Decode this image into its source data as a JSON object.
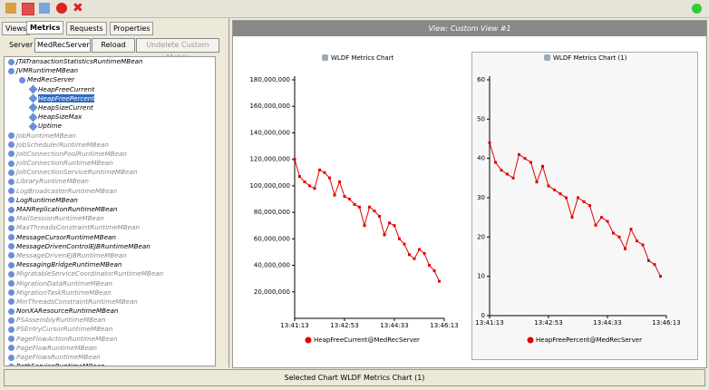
{
  "tabs": [
    "Views",
    "Metrics",
    "Requests",
    "Properties"
  ],
  "server_label": "Server",
  "server_select": "MedRecServer",
  "reload_button": "Reload",
  "undelete_button": "Undelete Custom Metric",
  "tree": [
    {
      "label": "JTATransactionStatisticsRuntimeMBean"
    },
    {
      "label": "JVMRuntimeMBean",
      "children": [
        {
          "label": "MedRecServer",
          "children": [
            {
              "label": "HeapFreeCurrent"
            },
            {
              "label": "HeapFreePercent"
            },
            {
              "label": "HeapSizeCurrent"
            },
            {
              "label": "HeapSizeMax"
            },
            {
              "label": "Uptime"
            }
          ]
        }
      ]
    },
    {
      "label": "JobRuntimeMBean"
    },
    {
      "label": "JobSchedulerRuntimeMBean"
    },
    {
      "label": "JoltConnectionPoolRuntimeMBean"
    },
    {
      "label": "JoltConnectionRuntimeMBean"
    },
    {
      "label": "JoltConnectionServiceRuntimeMBean"
    },
    {
      "label": "LibraryRuntimeMBean"
    },
    {
      "label": "LogBroadcasterRuntimeMBean"
    },
    {
      "label": "LogRuntimeMBean"
    },
    {
      "label": "MANReplicationRuntimeMBean"
    },
    {
      "label": "MailSessionRuntimeMBean"
    },
    {
      "label": "MaxThreadsConstraintRuntimeMBean"
    },
    {
      "label": "MessageCursorRuntimeMBean"
    },
    {
      "label": "MessageDrivenControlEJBRuntimeMBean"
    },
    {
      "label": "MessageDrivenEJBRuntimeMBean"
    },
    {
      "label": "MessagingBridgeRuntimeMBean"
    },
    {
      "label": "MigratableServiceCoordinatorRuntimeMBean"
    },
    {
      "label": "MigrationDataRuntimeMBean"
    },
    {
      "label": "MigrationTaskRuntimeMBean"
    },
    {
      "label": "MinThreadsConstraintRuntimeMBean"
    },
    {
      "label": "NonXAResourceRuntimeMBean"
    },
    {
      "label": "PSAssemblyRuntimeMBean"
    },
    {
      "label": "PSEntryCursorRuntimeMBean"
    },
    {
      "label": "PageFlowActionRuntimeMBean"
    },
    {
      "label": "PageFlowRuntimeMBean"
    },
    {
      "label": "PageFlowsRuntimeMBean"
    },
    {
      "label": "PathServiceRuntimeMBean"
    }
  ],
  "view_title": "View:  Custom View #1",
  "status": "Selected Chart WLDF Metrics Chart (1)",
  "chart_data": [
    {
      "type": "line",
      "title": "WLDF Metrics Chart",
      "x": [
        "13:41:13",
        "13:41:23",
        "13:41:33",
        "13:41:43",
        "13:41:53",
        "13:42:03",
        "13:42:13",
        "13:42:23",
        "13:42:33",
        "13:42:43",
        "13:42:53",
        "13:43:03",
        "13:43:13",
        "13:43:23",
        "13:43:33",
        "13:43:43",
        "13:43:53",
        "13:44:03",
        "13:44:13",
        "13:44:23",
        "13:44:33",
        "13:44:43",
        "13:44:53",
        "13:45:03",
        "13:45:13",
        "13:45:23",
        "13:45:33",
        "13:45:43",
        "13:45:53",
        "13:46:03"
      ],
      "xlim": [
        "13:41:13",
        "13:46:13"
      ],
      "xticks": [
        "13:41:13",
        "13:42:53",
        "13:44:33",
        "13:46:13"
      ],
      "ylim": [
        0,
        180000000
      ],
      "yticks": [
        {
          "value": 20000000,
          "label": "20,000,000"
        },
        {
          "value": 40000000,
          "label": "40,000,000"
        },
        {
          "value": 60000000,
          "label": "60,000,000"
        },
        {
          "value": 80000000,
          "label": "80,000,000"
        },
        {
          "value": 100000000,
          "label": "100,000,000"
        },
        {
          "value": 120000000,
          "label": "120,000,000"
        },
        {
          "value": 140000000,
          "label": "140,000,000"
        },
        {
          "value": 160000000,
          "label": "160,000,000"
        },
        {
          "value": 180000000,
          "label": "180,000,000"
        }
      ],
      "series": [
        {
          "name": "HeapFreeCurrent@MedRecServer",
          "color": "#e00000",
          "values": [
            120000000,
            107000000,
            103000000,
            100000000,
            98000000,
            112000000,
            110000000,
            106000000,
            93000000,
            103000000,
            92000000,
            90000000,
            86000000,
            84000000,
            70000000,
            84000000,
            81000000,
            77000000,
            63000000,
            72000000,
            70000000,
            60000000,
            56000000,
            48000000,
            45000000,
            52000000,
            49000000,
            40000000,
            36000000,
            28000000
          ]
        }
      ]
    },
    {
      "type": "line",
      "title": "WLDF Metrics Chart (1)",
      "x": [
        "13:41:13",
        "13:41:23",
        "13:41:33",
        "13:41:43",
        "13:41:53",
        "13:42:03",
        "13:42:13",
        "13:42:23",
        "13:42:33",
        "13:42:43",
        "13:42:53",
        "13:43:03",
        "13:43:13",
        "13:43:23",
        "13:43:33",
        "13:43:43",
        "13:43:53",
        "13:44:03",
        "13:44:13",
        "13:44:23",
        "13:44:33",
        "13:44:43",
        "13:44:53",
        "13:45:03",
        "13:45:13",
        "13:45:23",
        "13:45:33",
        "13:45:43",
        "13:45:53",
        "13:46:03"
      ],
      "xlim": [
        "13:41:13",
        "13:46:13"
      ],
      "xticks": [
        "13:41:13",
        "13:42:53",
        "13:44:33",
        "13:46:13"
      ],
      "ylim": [
        0,
        60
      ],
      "yticks": [
        0,
        10,
        20,
        30,
        40,
        50,
        60
      ],
      "series": [
        {
          "name": "HeapFreePercent@MedRecServer",
          "color": "#e00000",
          "values": [
            44,
            39,
            37,
            36,
            35,
            41,
            40,
            39,
            34,
            38,
            33,
            32,
            31,
            30,
            25,
            30,
            29,
            28,
            23,
            25,
            24,
            21,
            20,
            17,
            22,
            19,
            18,
            14,
            13,
            10
          ]
        }
      ]
    }
  ]
}
